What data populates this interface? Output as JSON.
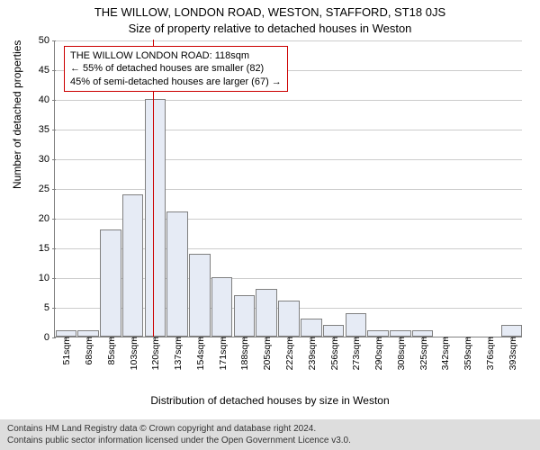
{
  "title": "THE WILLOW, LONDON ROAD, WESTON, STAFFORD, ST18 0JS",
  "subtitle": "Size of property relative to detached houses in Weston",
  "ylabel": "Number of detached properties",
  "xlabel": "Distribution of detached houses by size in Weston",
  "chart": {
    "type": "histogram",
    "ylim": [
      0,
      50
    ],
    "ytick_step": 5,
    "bar_color": "#e6ebf5",
    "bar_border": "#808080",
    "grid_color": "#cccccc",
    "axis_color": "#808080",
    "background_color": "#ffffff",
    "marker_color": "#cc0000",
    "marker_value": 118,
    "categories": [
      "51sqm",
      "68sqm",
      "85sqm",
      "103sqm",
      "120sqm",
      "137sqm",
      "154sqm",
      "171sqm",
      "188sqm",
      "205sqm",
      "222sqm",
      "239sqm",
      "256sqm",
      "273sqm",
      "290sqm",
      "308sqm",
      "325sqm",
      "342sqm",
      "359sqm",
      "376sqm",
      "393sqm"
    ],
    "values": [
      1,
      1,
      18,
      24,
      40,
      21,
      14,
      10,
      7,
      8,
      6,
      3,
      2,
      4,
      1,
      1,
      1,
      0,
      0,
      0,
      2
    ],
    "bar_width_ratio": 0.95
  },
  "annotation": {
    "line1": "THE WILLOW LONDON ROAD: 118sqm",
    "line2": "← 55% of detached houses are smaller (82)",
    "line3": "45% of semi-detached houses are larger (67) →"
  },
  "footer": {
    "line1": "Contains HM Land Registry data © Crown copyright and database right 2024.",
    "line2": "Contains public sector information licensed under the Open Government Licence v3.0."
  }
}
